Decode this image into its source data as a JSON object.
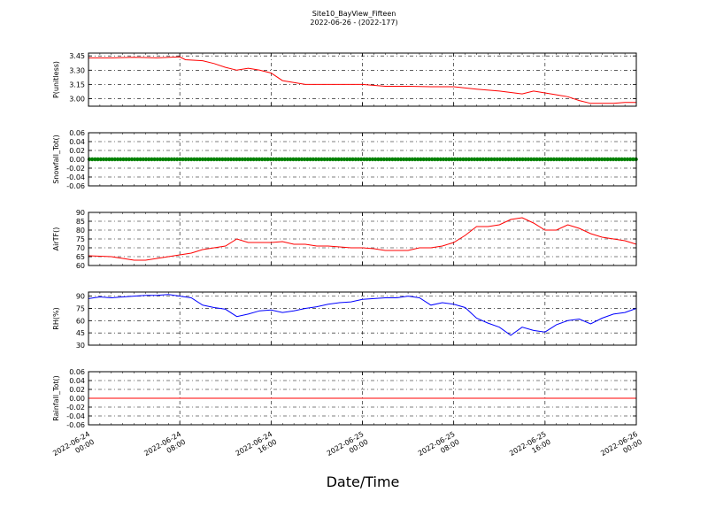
{
  "chart_data": {
    "type": "line",
    "title": "Site10_BayView_Fifteen",
    "subtitle": "2022-06-26 - (2022-177)",
    "xlabel": "Date/Time",
    "x_range": [
      "2022-06-24 00:00",
      "2022-06-26 00:00"
    ],
    "x_tick_labels": [
      [
        "2022-06-24",
        "00:00"
      ],
      [
        "2022-06-24",
        "08:00"
      ],
      [
        "2022-06-24",
        "16:00"
      ],
      [
        "2022-06-25",
        "00:00"
      ],
      [
        "2022-06-25",
        "08:00"
      ],
      [
        "2022-06-25",
        "16:00"
      ],
      [
        "2022-06-26",
        "00:00"
      ]
    ],
    "grid": true,
    "panels": [
      {
        "ylabel": "P(unitless)",
        "ylim": [
          2.92,
          3.48
        ],
        "yticks": [
          "3.00",
          "3.15",
          "3.30",
          "3.45"
        ],
        "color": "#ff0000",
        "x_hours": [
          0,
          2,
          4,
          6,
          8,
          8.5,
          10,
          11,
          12,
          13,
          14,
          15,
          16,
          17,
          18,
          19,
          20,
          21,
          22,
          24,
          26,
          28,
          30,
          32,
          34,
          36,
          38,
          39,
          40,
          41,
          42,
          43,
          44,
          46,
          47,
          48
        ],
        "values": [
          3.43,
          3.43,
          3.435,
          3.43,
          3.44,
          3.41,
          3.4,
          3.37,
          3.33,
          3.3,
          3.32,
          3.3,
          3.27,
          3.19,
          3.17,
          3.15,
          3.15,
          3.15,
          3.15,
          3.15,
          3.13,
          3.13,
          3.125,
          3.125,
          3.1,
          3.08,
          3.05,
          3.08,
          3.06,
          3.04,
          3.02,
          2.98,
          2.95,
          2.95,
          2.96,
          2.96
        ]
      },
      {
        "ylabel": "Snowfall_Tot()",
        "ylim": [
          -0.06,
          0.06
        ],
        "yticks": [
          "-0.06",
          "-0.04",
          "-0.02",
          "0.00",
          "0.02",
          "0.04",
          "0.06"
        ],
        "color": "#008000",
        "marker": "dot",
        "x_hours": [
          0,
          48
        ],
        "values": [
          0.0,
          0.0
        ]
      },
      {
        "ylabel": "AirTF()",
        "ylim": [
          60,
          90
        ],
        "yticks": [
          "60",
          "65",
          "70",
          "75",
          "80",
          "85",
          "90"
        ],
        "color": "#ff0000",
        "x_hours": [
          0,
          2,
          3,
          4,
          5,
          6,
          7,
          8,
          9,
          10,
          11,
          12,
          13,
          14,
          15,
          16,
          17,
          18,
          19,
          20,
          21,
          22,
          23,
          24,
          25,
          26,
          27,
          28,
          29,
          30,
          31,
          32,
          33,
          34,
          35,
          36,
          37,
          38,
          39,
          40,
          41,
          42,
          43,
          44,
          45,
          46,
          47,
          48
        ],
        "values": [
          65.5,
          65,
          64,
          63,
          63,
          64,
          65,
          66,
          67,
          69,
          70,
          71,
          75,
          73,
          73,
          73,
          73.5,
          72,
          72,
          71,
          71,
          70.5,
          70,
          70,
          69.5,
          68.5,
          68.5,
          68.5,
          70,
          70,
          71,
          73,
          77,
          82,
          82,
          83,
          86,
          87,
          84,
          80,
          80,
          83,
          81,
          78,
          76,
          75,
          74,
          72
        ]
      },
      {
        "ylabel": "RH(%)",
        "ylim": [
          30,
          95
        ],
        "yticks": [
          "30",
          "45",
          "60",
          "75",
          "90"
        ],
        "color": "#0000ff",
        "x_hours": [
          0,
          1,
          2,
          3,
          4,
          5,
          6,
          7,
          8,
          9,
          10,
          11,
          12,
          13,
          14,
          15,
          16,
          17,
          18,
          19,
          20,
          21,
          22,
          23,
          24,
          25,
          26,
          27,
          28,
          29,
          30,
          31,
          32,
          33,
          34,
          35,
          36,
          37,
          38,
          39,
          40,
          41,
          42,
          43,
          44,
          45,
          46,
          47,
          48
        ],
        "values": [
          87,
          89,
          88,
          89,
          90,
          91,
          91,
          92,
          90,
          88,
          79,
          76,
          74,
          65,
          68,
          72,
          73,
          70,
          72,
          75,
          77,
          80,
          82,
          83,
          86,
          87,
          88,
          88,
          90,
          88,
          79,
          82,
          80,
          76,
          63,
          57,
          52,
          42,
          52,
          48,
          46,
          55,
          60,
          62,
          56,
          63,
          68,
          70,
          75
        ]
      },
      {
        "ylabel": "Rainfall_Tot()",
        "ylim": [
          -0.06,
          0.06
        ],
        "yticks": [
          "-0.06",
          "-0.04",
          "-0.02",
          "0.00",
          "0.02",
          "0.04",
          "0.06"
        ],
        "color": "#ff0000",
        "x_hours": [
          0,
          48
        ],
        "values": [
          0.0,
          0.0
        ]
      }
    ]
  }
}
